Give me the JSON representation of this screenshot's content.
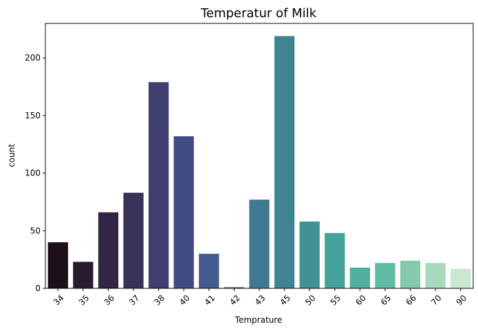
{
  "chart_data": {
    "type": "bar",
    "title": "Temperatur of Milk",
    "xlabel": "Temprature",
    "ylabel": "count",
    "categories": [
      "34",
      "35",
      "36",
      "37",
      "38",
      "40",
      "41",
      "42",
      "43",
      "45",
      "50",
      "55",
      "60",
      "65",
      "66",
      "70",
      "90"
    ],
    "values": [
      40,
      23,
      66,
      83,
      179,
      132,
      30,
      1,
      77,
      219,
      58,
      48,
      18,
      22,
      24,
      22,
      17
    ],
    "colors": [
      "#1c1019",
      "#291a30",
      "#322545",
      "#3a3159",
      "#403d70",
      "#424b82",
      "#425a8c",
      "#41698f",
      "#407891",
      "#408493",
      "#409296",
      "#46a19a",
      "#51af9e",
      "#5fbca2",
      "#85c9ad",
      "#a7d9bc",
      "#c8e8d0"
    ],
    "ylim": [
      0,
      230
    ],
    "yticks": [
      0,
      50,
      100,
      150,
      200
    ],
    "grid": false,
    "legend": "none"
  }
}
